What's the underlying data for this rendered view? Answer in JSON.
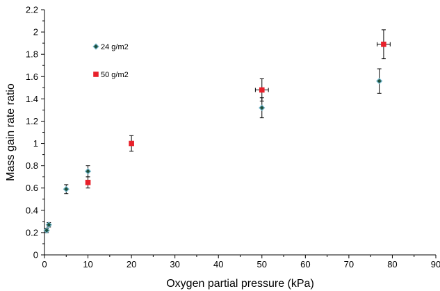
{
  "chart_data": {
    "type": "scatter",
    "xlabel": "Oxygen partial pressure (kPa)",
    "ylabel": "Mass gain rate ratio",
    "xlim": [
      0,
      90
    ],
    "ylim": [
      0,
      2.2
    ],
    "xticks": [
      0,
      10,
      20,
      30,
      40,
      50,
      60,
      70,
      80,
      90
    ],
    "yticks": [
      0,
      0.2,
      0.4,
      0.6,
      0.8,
      1,
      1.2,
      1.4,
      1.6,
      1.8,
      2,
      2.2
    ],
    "xtick_labels": [
      "0",
      "10",
      "20",
      "30",
      "40",
      "50",
      "60",
      "70",
      "80",
      "90"
    ],
    "ytick_labels": [
      "0",
      "0.2",
      "0.4",
      "0.6",
      "0.8",
      "1",
      "1.2",
      "1.4",
      "1.6",
      "1.8",
      "2",
      "2.2"
    ],
    "grid": false,
    "legend_position": "top-left",
    "series": [
      {
        "name": "24 g/m2",
        "marker": "diamond",
        "color": "#1f4f3a",
        "edge_color": "#6fb3c8",
        "points": [
          {
            "x": 0.5,
            "y": 0.22,
            "yerr": 0.02,
            "xerr": 0
          },
          {
            "x": 1,
            "y": 0.27,
            "yerr": 0.02,
            "xerr": 0
          },
          {
            "x": 5,
            "y": 0.59,
            "yerr": 0.04,
            "xerr": 0
          },
          {
            "x": 10,
            "y": 0.75,
            "yerr": 0.05,
            "xerr": 0
          },
          {
            "x": 50,
            "y": 1.32,
            "yerr": 0.09,
            "xerr": 0
          },
          {
            "x": 77,
            "y": 1.56,
            "yerr": 0.11,
            "xerr": 0
          }
        ]
      },
      {
        "name": "50 g/m2",
        "marker": "square",
        "color": "#e8202a",
        "edge_color": "#e8202a",
        "points": [
          {
            "x": 10,
            "y": 0.65,
            "yerr": 0.05,
            "xerr": 0
          },
          {
            "x": 20,
            "y": 1.0,
            "yerr": 0.07,
            "xerr": 0
          },
          {
            "x": 50,
            "y": 1.48,
            "yerr": 0.1,
            "xerr": 1.5
          },
          {
            "x": 78,
            "y": 1.89,
            "yerr": 0.13,
            "xerr": 1.5
          }
        ]
      }
    ]
  }
}
